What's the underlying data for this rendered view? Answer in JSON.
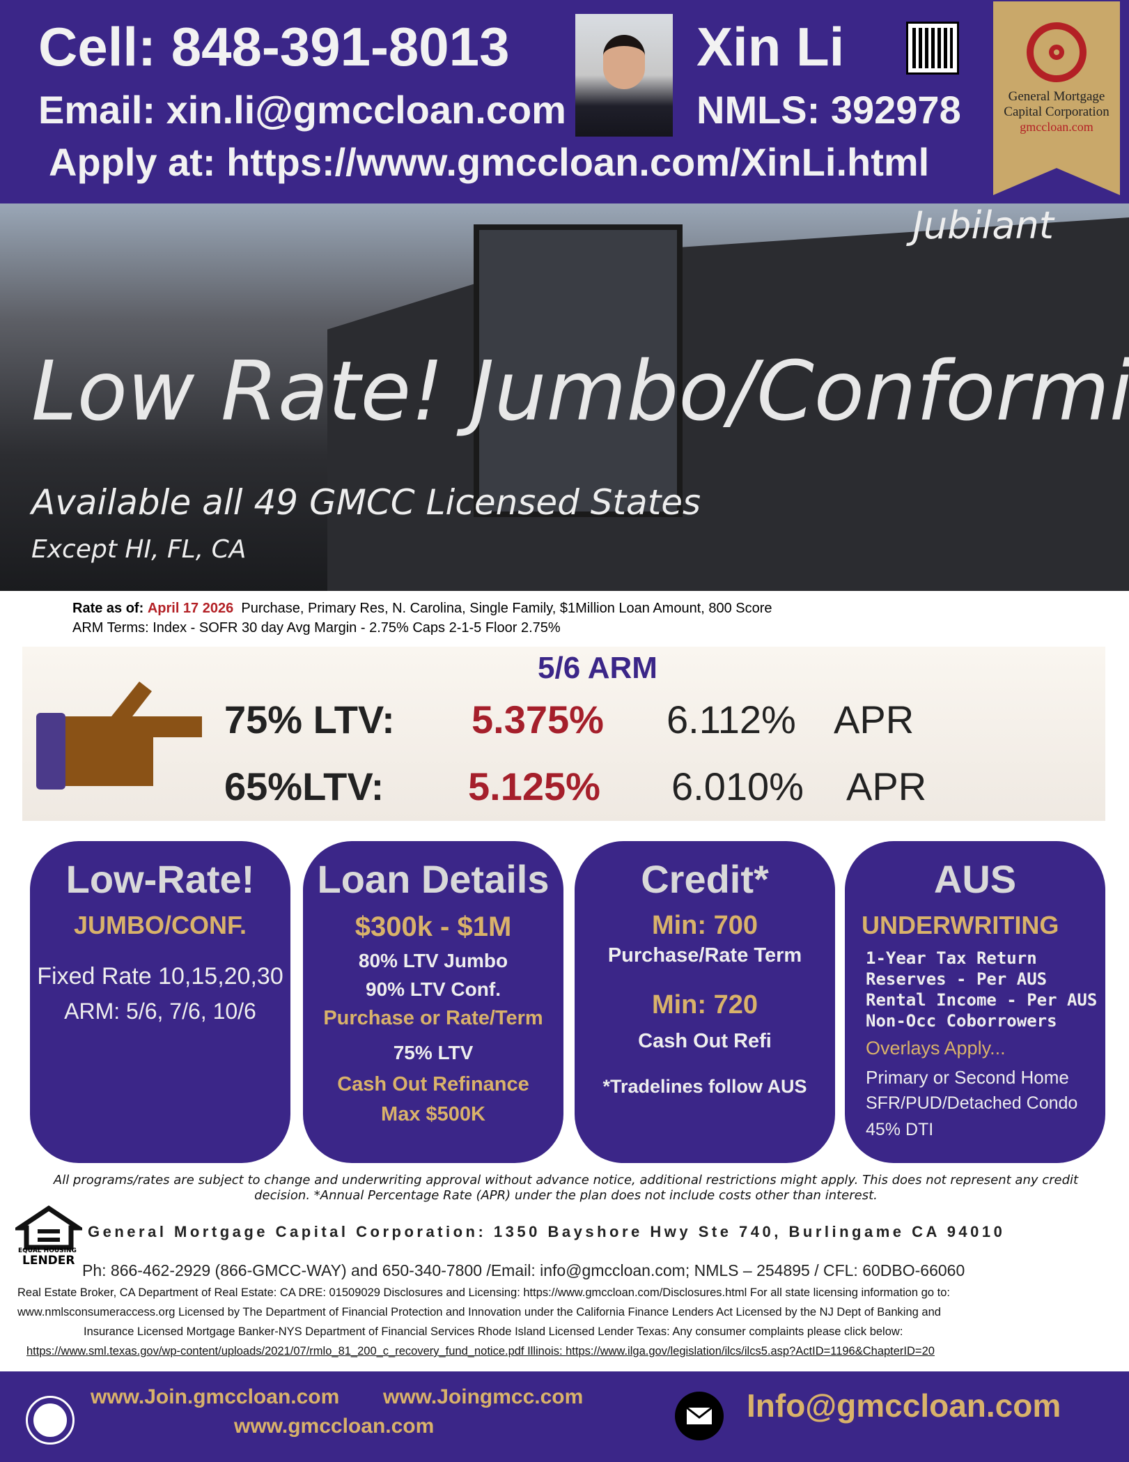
{
  "header": {
    "cell": "Cell: 848-391-8013",
    "email": "Email: xin.li@gmccloan.com",
    "apply": "Apply at: https://www.gmccloan.com/XinLi.html",
    "name": "Xin Li",
    "nmls": "NMLS: 392978",
    "logo": {
      "line1": "General Mortgage",
      "line2": "Capital Corporation",
      "site": "gmccloan.com"
    }
  },
  "hero": {
    "tag": "Jubilant",
    "headline": "Low Rate! Jumbo/Conforming",
    "subhead": "Available all 49 GMCC Licensed States",
    "except": "Except HI, FL, CA"
  },
  "rate_info": {
    "label": "Rate as of:",
    "date": "April 17  2026",
    "scenario": "Purchase, Primary Res,  N. Carolina, Single Family, $1Million Loan Amount, 800 Score",
    "arm_terms": "ARM Terms:  Index - SOFR 30 day Avg  Margin - 2.75%  Caps 2-1-5 Floor 2.75%"
  },
  "rates": {
    "title": "5/6 ARM",
    "rows": [
      {
        "ltv": "75% LTV:",
        "rate": "5.375%",
        "apr": "6.112%",
        "apr_label": "APR"
      },
      {
        "ltv": "65%LTV:",
        "rate": "5.125%",
        "apr": "6.010%",
        "apr_label": "APR"
      }
    ]
  },
  "cards": [
    {
      "title": "Low-Rate!",
      "lines": [
        "JUMBO/CONF.",
        "Fixed Rate 10,15,20,30",
        "ARM: 5/6, 7/6, 10/6"
      ]
    },
    {
      "title": "Loan Details",
      "lines": [
        "$300k - $1M",
        "80% LTV Jumbo",
        "90% LTV Conf.",
        "Purchase or Rate/Term",
        "75% LTV",
        "Cash Out Refinance",
        "Max $500K"
      ]
    },
    {
      "title": "Credit*",
      "lines": [
        "Min: 700",
        "Purchase/Rate Term",
        "Min: 720",
        "Cash Out Refi",
        "*Tradelines follow AUS"
      ]
    },
    {
      "title": "AUS",
      "lines": [
        "UNDERWRITING",
        "1-Year Tax Return",
        "Reserves - Per AUS",
        "Rental Income - Per AUS",
        "Non-Occ Coborrowers",
        "Overlays Apply...",
        "Primary or Second Home",
        "SFR/PUD/Detached Condo",
        "45% DTI"
      ]
    }
  ],
  "footer": {
    "disclaimer": "All programs/rates are subject to change and underwriting approval without advance notice, additional restrictions might apply. This does not represent any credit decision. *Annual Percentage Rate (APR) under the plan does not include costs other than interest.",
    "ehl_top": "EQUAL HOUSING",
    "ehl_bottom": "LENDER",
    "address": "General Mortgage Capital Corporation: 1350 Bayshore Hwy Ste 740, Burlingame CA 94010",
    "phone": "Ph: 866-462-2929 (866-GMCC-WAY) and 650-340-7800 /Email: info@gmccloan.com; NMLS – 254895 / CFL: 60DBO-66060",
    "licensing": [
      "Real Estate Broker, CA Department of Real Estate: CA DRE: 01509029  Disclosures and Licensing: https://www.gmccloan.com/Disclosures.html  For all state licensing information go to:",
      "www.nmlsconsumeraccess.org   Licensed by The Department of Financial Protection and Innovation under the California Finance Lenders Act  Licensed by the NJ Dept of Banking and",
      "Insurance  Licensed Mortgage Banker-NYS Department of Financial Services  Rhode Island Licensed Lender   Texas: Any consumer complaints please click below:",
      "https://www.sml.texas.gov/wp-content/uploads/2021/07/rmlo_81_200_c_recovery_fund_notice.pdf  Illinois: https://www.ilga.gov/legislation/ilcs/ilcs5.asp?ActID=1196&ChapterID=20"
    ]
  },
  "bottom": {
    "site1": "www.Join.gmccloan.com",
    "site2": "www.Joingmcc.com",
    "site3": "www.gmccloan.com",
    "email": "Info@gmccloan.com"
  }
}
